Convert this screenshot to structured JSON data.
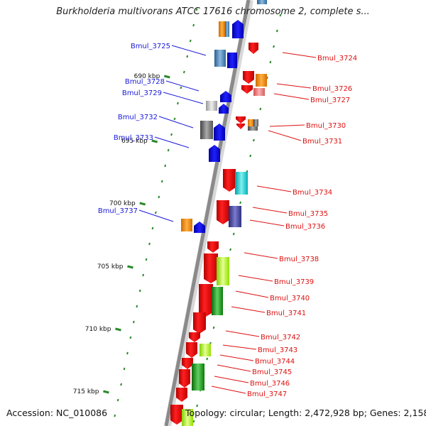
{
  "title": "Burkholderia multivorans ATCC 17616 chromosome 2, complete s...",
  "accession": "Accession: NC_010086",
  "topology": "Topology: circular; Length: 2,472,928 bp; Genes: 2,158",
  "colors": {
    "backbone": "#8a8a8a",
    "tick": "#2a8a2a",
    "forward_label": "#1a1adb",
    "reverse_label": "#dd1111"
  },
  "kbp_ticks": [
    {
      "label": "690 kbp"
    },
    {
      "label": "695 kbp"
    },
    {
      "label": "700 kbp"
    },
    {
      "label": "705 kbp"
    },
    {
      "label": "710 kbp"
    },
    {
      "label": "715 kbp"
    }
  ],
  "forward_labels": [
    {
      "name": "Bmul_3725"
    },
    {
      "name": "Bmul_3728"
    },
    {
      "name": "Bmul_3729"
    },
    {
      "name": "Bmul_3732"
    },
    {
      "name": "Bmul_3733"
    },
    {
      "name": "Bmul_3737"
    }
  ],
  "reverse_labels": [
    {
      "name": "Bmul_3724"
    },
    {
      "name": "Bmul_3726"
    },
    {
      "name": "Bmul_3727"
    },
    {
      "name": "Bmul_3730"
    },
    {
      "name": "Bmul_3731"
    },
    {
      "name": "Bmul_3734"
    },
    {
      "name": "Bmul_3735"
    },
    {
      "name": "Bmul_3736"
    },
    {
      "name": "Bmul_3738"
    },
    {
      "name": "Bmul_3739"
    },
    {
      "name": "Bmul_3740"
    },
    {
      "name": "Bmul_3741"
    },
    {
      "name": "Bmul_3742"
    },
    {
      "name": "Bmul_3743"
    },
    {
      "name": "Bmul_3744"
    },
    {
      "name": "Bmul_3745"
    },
    {
      "name": "Bmul_3746"
    },
    {
      "name": "Bmul_3747"
    }
  ]
}
